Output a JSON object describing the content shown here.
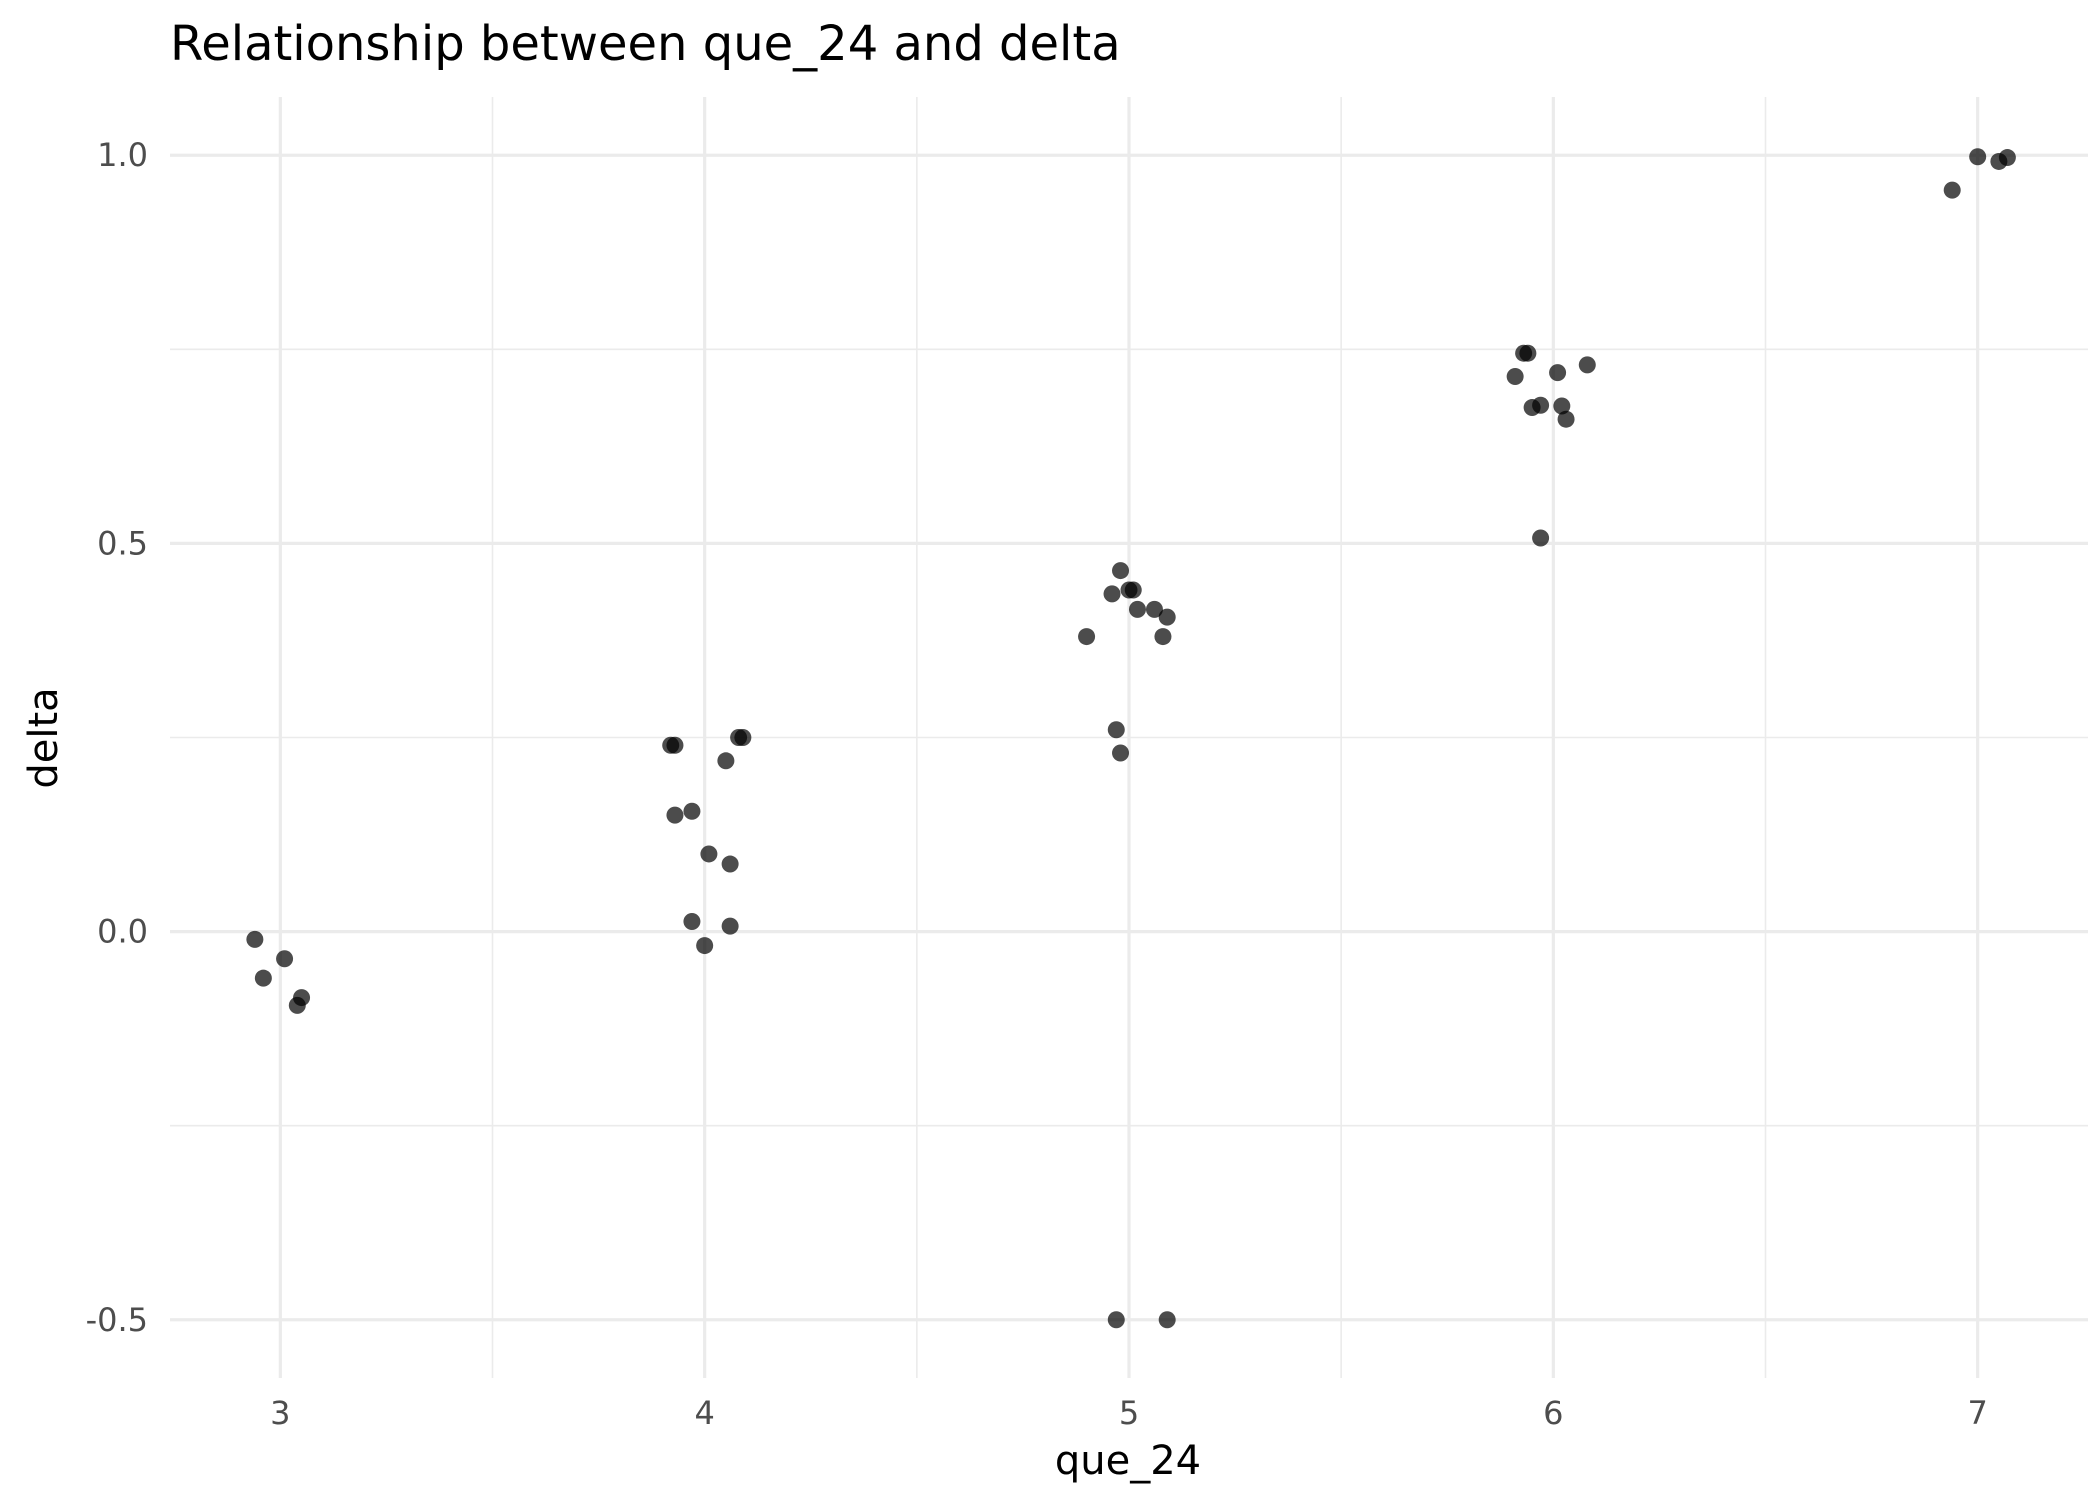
{
  "chart_data": {
    "type": "scatter",
    "title": "Relationship between que_24 and delta",
    "xlabel": "que_24",
    "ylabel": "delta",
    "xlim": [
      2.74,
      7.26
    ],
    "ylim": [
      -0.575,
      1.075
    ],
    "x_ticks": [
      3,
      4,
      5,
      6,
      7
    ],
    "y_ticks": [
      -0.5,
      0.0,
      0.5,
      1.0
    ],
    "x_tick_labels": [
      "3",
      "4",
      "5",
      "6",
      "7"
    ],
    "y_tick_labels": [
      "-0.5",
      "0.0",
      "0.5",
      "1.0"
    ],
    "grid": true,
    "point_color": "#000000",
    "points": [
      {
        "x": 2.94,
        "y": -0.01
      },
      {
        "x": 2.96,
        "y": -0.06
      },
      {
        "x": 3.01,
        "y": -0.035
      },
      {
        "x": 3.04,
        "y": -0.095
      },
      {
        "x": 3.05,
        "y": -0.085
      },
      {
        "x": 3.92,
        "y": 0.24
      },
      {
        "x": 3.93,
        "y": 0.24
      },
      {
        "x": 3.93,
        "y": 0.15
      },
      {
        "x": 3.97,
        "y": 0.155
      },
      {
        "x": 3.97,
        "y": 0.013
      },
      {
        "x": 4.0,
        "y": -0.018
      },
      {
        "x": 4.01,
        "y": 0.1
      },
      {
        "x": 4.05,
        "y": 0.22
      },
      {
        "x": 4.06,
        "y": 0.087
      },
      {
        "x": 4.06,
        "y": 0.007
      },
      {
        "x": 4.08,
        "y": 0.25
      },
      {
        "x": 4.09,
        "y": 0.25
      },
      {
        "x": 4.9,
        "y": 0.38
      },
      {
        "x": 4.96,
        "y": 0.435
      },
      {
        "x": 4.97,
        "y": 0.26
      },
      {
        "x": 4.98,
        "y": 0.465
      },
      {
        "x": 4.98,
        "y": 0.23
      },
      {
        "x": 5.0,
        "y": 0.44
      },
      {
        "x": 5.01,
        "y": 0.44
      },
      {
        "x": 5.02,
        "y": 0.415
      },
      {
        "x": 5.06,
        "y": 0.415
      },
      {
        "x": 5.08,
        "y": 0.38
      },
      {
        "x": 5.09,
        "y": 0.405
      },
      {
        "x": 4.97,
        "y": -0.5
      },
      {
        "x": 5.09,
        "y": -0.5
      },
      {
        "x": 5.91,
        "y": 0.715
      },
      {
        "x": 5.93,
        "y": 0.745
      },
      {
        "x": 5.94,
        "y": 0.745
      },
      {
        "x": 5.95,
        "y": 0.675
      },
      {
        "x": 5.97,
        "y": 0.678
      },
      {
        "x": 5.97,
        "y": 0.507
      },
      {
        "x": 6.01,
        "y": 0.72
      },
      {
        "x": 6.02,
        "y": 0.677
      },
      {
        "x": 6.03,
        "y": 0.66
      },
      {
        "x": 6.08,
        "y": 0.73
      },
      {
        "x": 6.94,
        "y": 0.955
      },
      {
        "x": 7.0,
        "y": 0.998
      },
      {
        "x": 7.05,
        "y": 0.992
      },
      {
        "x": 7.07,
        "y": 0.997
      }
    ]
  }
}
